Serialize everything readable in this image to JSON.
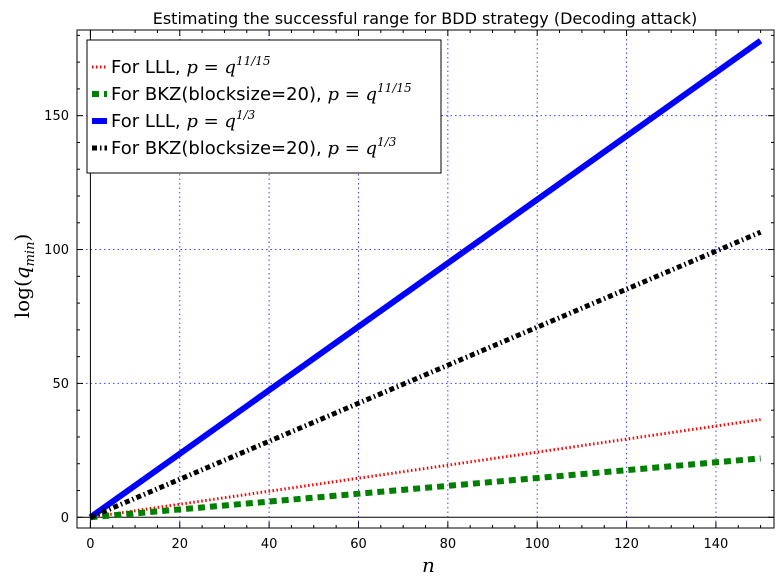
{
  "chart_data": {
    "type": "line",
    "title": "Estimating the successful range for BDD strategy (Decoding attack)",
    "xlabel": "n",
    "ylabel": "log(q_min)",
    "xlim": [
      -3,
      153
    ],
    "ylim": [
      -4,
      182
    ],
    "xticks": [
      0,
      20,
      40,
      60,
      80,
      100,
      120,
      140
    ],
    "yticks": [
      0,
      50,
      100,
      150
    ],
    "grid": true,
    "legend_position": "top-left",
    "series": [
      {
        "name": "For LLL, p = q^(11/15)",
        "legend_prefix": "For LLL, ",
        "legend_math": "p = q",
        "legend_exp": "11/15",
        "color": "#ff0000",
        "style": "dotted",
        "x": [
          0,
          150
        ],
        "y": [
          0,
          36.5
        ]
      },
      {
        "name": "For BKZ(blocksize=20), p = q^(11/15)",
        "legend_prefix": "For BKZ(blocksize=20), ",
        "legend_math": "p = q",
        "legend_exp": "11/15",
        "color": "#008000",
        "style": "dashed",
        "x": [
          0,
          150
        ],
        "y": [
          0,
          22
        ]
      },
      {
        "name": "For LLL, p = q^(1/3)",
        "legend_prefix": "For LLL, ",
        "legend_math": "p = q",
        "legend_exp": "1/3",
        "color": "#0000ff",
        "style": "solid",
        "x": [
          0,
          150
        ],
        "y": [
          0,
          178
        ]
      },
      {
        "name": "For BKZ(blocksize=20), p = q^(1/3)",
        "legend_prefix": "For BKZ(blocksize=20), ",
        "legend_math": "p = q",
        "legend_exp": "1/3",
        "color": "#000000",
        "style": "dashdot",
        "x": [
          0,
          150
        ],
        "y": [
          0,
          106.5
        ]
      }
    ]
  }
}
